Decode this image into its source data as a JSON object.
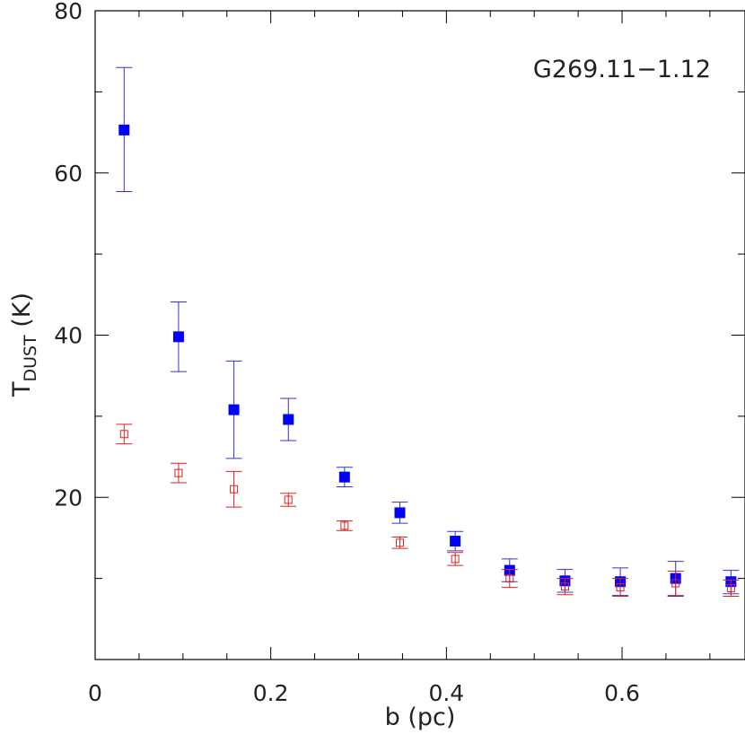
{
  "chart_data": {
    "type": "scatter",
    "title": "",
    "annotation": "G269.11−1.12",
    "xlabel": "b (pc)",
    "ylabel": {
      "main": "T",
      "sub": "DUST",
      "unit": " (K)"
    },
    "xlim": [
      0,
      0.74
    ],
    "ylim": [
      0,
      80
    ],
    "xticks": [
      0,
      0.2,
      0.4,
      0.6
    ],
    "xtick_labels": [
      "0",
      "0.2",
      "0.4",
      "0.6"
    ],
    "yticks": [
      20,
      40,
      60,
      80
    ],
    "ytick_labels": [
      "20",
      "40",
      "60",
      "80"
    ],
    "grid": false,
    "legend": "none",
    "series": [
      {
        "marker": "filled-square",
        "color": "#0000ff",
        "errorbar_color": "#3333cc",
        "points": [
          {
            "x": 0.033,
            "y": 65.3,
            "ylo": 57.7,
            "yhi": 73.0
          },
          {
            "x": 0.095,
            "y": 39.8,
            "ylo": 35.5,
            "yhi": 44.1
          },
          {
            "x": 0.158,
            "y": 30.8,
            "ylo": 24.8,
            "yhi": 36.8
          },
          {
            "x": 0.22,
            "y": 29.6,
            "ylo": 27.0,
            "yhi": 32.2
          },
          {
            "x": 0.284,
            "y": 22.5,
            "ylo": 21.3,
            "yhi": 23.7
          },
          {
            "x": 0.347,
            "y": 18.1,
            "ylo": 16.8,
            "yhi": 19.4
          },
          {
            "x": 0.41,
            "y": 14.6,
            "ylo": 13.4,
            "yhi": 15.8
          },
          {
            "x": 0.472,
            "y": 11.0,
            "ylo": 9.6,
            "yhi": 12.4
          },
          {
            "x": 0.535,
            "y": 9.7,
            "ylo": 8.3,
            "yhi": 11.1
          },
          {
            "x": 0.598,
            "y": 9.6,
            "ylo": 7.9,
            "yhi": 11.3
          },
          {
            "x": 0.661,
            "y": 10.0,
            "ylo": 7.8,
            "yhi": 12.1
          },
          {
            "x": 0.724,
            "y": 9.6,
            "ylo": 8.1,
            "yhi": 11.0
          }
        ]
      },
      {
        "marker": "open-square",
        "color": "#dd2222",
        "errorbar_color": "#dd2222",
        "points": [
          {
            "x": 0.033,
            "y": 27.8,
            "ylo": 26.6,
            "yhi": 29.0
          },
          {
            "x": 0.095,
            "y": 23.0,
            "ylo": 21.8,
            "yhi": 24.2
          },
          {
            "x": 0.158,
            "y": 21.0,
            "ylo": 18.8,
            "yhi": 23.2
          },
          {
            "x": 0.22,
            "y": 19.7,
            "ylo": 18.9,
            "yhi": 20.5
          },
          {
            "x": 0.284,
            "y": 16.5,
            "ylo": 15.9,
            "yhi": 17.1
          },
          {
            "x": 0.347,
            "y": 14.4,
            "ylo": 13.7,
            "yhi": 15.1
          },
          {
            "x": 0.41,
            "y": 12.4,
            "ylo": 11.6,
            "yhi": 13.2
          },
          {
            "x": 0.472,
            "y": 10.0,
            "ylo": 8.9,
            "yhi": 11.1
          },
          {
            "x": 0.535,
            "y": 9.0,
            "ylo": 8.0,
            "yhi": 10.0
          },
          {
            "x": 0.598,
            "y": 8.9,
            "ylo": 7.8,
            "yhi": 10.0
          },
          {
            "x": 0.661,
            "y": 9.4,
            "ylo": 7.9,
            "yhi": 10.9
          },
          {
            "x": 0.724,
            "y": 8.8,
            "ylo": 7.8,
            "yhi": 9.8
          }
        ]
      }
    ]
  }
}
